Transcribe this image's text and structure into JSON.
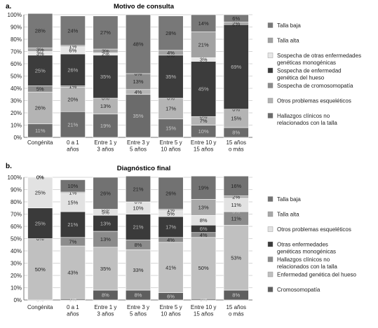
{
  "chart_data": [
    {
      "type": "bar",
      "stacked": true,
      "panel": "a.",
      "title": "Motivo de consulta",
      "xlabel": "",
      "ylabel": "",
      "ylim": [
        0,
        100
      ],
      "ytick_labels": [
        "0%",
        "10%",
        "20%",
        "30%",
        "40%",
        "50%",
        "60%",
        "70%",
        "80%",
        "90%",
        "100%"
      ],
      "categories": [
        [
          "Congénita"
        ],
        [
          "0 a 1",
          "años"
        ],
        [
          "Entre 1 y",
          "3 años"
        ],
        [
          "Entre 3 y",
          "5 años"
        ],
        [
          "Entre 5 y",
          "10 años"
        ],
        [
          "Entre 10 y",
          "15 años"
        ],
        [
          "15 años",
          "o más"
        ]
      ],
      "grid": true,
      "legend_position": "right",
      "series": [
        {
          "name": "Hallazgos clínicos no relacionados con la talla",
          "color": "#6b6b6b",
          "label_color": "#c9c9c9",
          "values": [
            11,
            21,
            19,
            35,
            15,
            10,
            8
          ],
          "labels": [
            "11%",
            "21%",
            "19%",
            "35%",
            "15%",
            "10%",
            "8%"
          ]
        },
        {
          "name": "Otros problemas esqueléticos",
          "color": "#b4b4b4",
          "label_color": "#222222",
          "values": [
            26,
            20,
            13,
            4,
            17,
            7,
            15
          ],
          "labels": [
            "26%",
            "20%",
            "13%",
            "4%",
            "17%",
            "7%",
            "15%"
          ]
        },
        {
          "name": "Sospecha de cromosomopatía",
          "color": "#8c8c8c",
          "label_color": "#222222",
          "values": [
            5,
            1,
            0,
            13,
            0,
            0,
            0
          ],
          "labels": [
            "5%",
            "1%",
            "0%",
            "13%",
            "0%",
            "0%",
            "0%"
          ]
        },
        {
          "name": "Sospecha de enfermedad genética del hueso",
          "color": "#3c3c3c",
          "label_color": "#bfbfbf",
          "values": [
            25,
            26,
            35,
            0,
            35,
            45,
            69
          ],
          "labels": [
            "25%",
            "26%",
            "35%",
            "0%",
            "35%",
            "45%",
            "69%"
          ]
        },
        {
          "name": "Sospecha de otras enfermedades genéticas monogénicas",
          "color": "#e6e6e6",
          "label_color": "#222222",
          "values": [
            3,
            6,
            2,
            0,
            0,
            3,
            0
          ],
          "labels": [
            "3%",
            "6%",
            "2%",
            "0%",
            "0%",
            "3%",
            "0%"
          ]
        },
        {
          "name": "Talla alta",
          "color": "#a2a2a2",
          "label_color": "#222222",
          "values": [
            3,
            1,
            3,
            0,
            4,
            21,
            2
          ],
          "labels": [
            "3%",
            "1%",
            "3%",
            "0%",
            "4%",
            "21%",
            "2%"
          ]
        },
        {
          "name": "Talla baja",
          "color": "#787878",
          "label_color": "#222222",
          "values": [
            28,
            24,
            27,
            48,
            28,
            14,
            6
          ],
          "labels": [
            "28%",
            "24%",
            "27%",
            "48%",
            "28%",
            "14%",
            "6%"
          ]
        }
      ]
    },
    {
      "type": "bar",
      "stacked": true,
      "panel": "b.",
      "title": "Diagnóstico final",
      "xlabel": "",
      "ylabel": "",
      "ylim": [
        0,
        100
      ],
      "ytick_labels": [
        "0%",
        "10%",
        "20%",
        "30%",
        "40%",
        "50%",
        "60%",
        "70%",
        "80%",
        "90%",
        "100%"
      ],
      "categories": [
        [
          "Congénita"
        ],
        [
          "0 a 1",
          "años"
        ],
        [
          "Entre 1 y",
          "3 años"
        ],
        [
          "Entre 3 y",
          "5 años"
        ],
        [
          "Entre 5 y",
          "10 años"
        ],
        [
          "Entre 10 y",
          "15 años"
        ],
        [
          "15 años",
          "o más"
        ]
      ],
      "grid": true,
      "legend_position": "right",
      "series": [
        {
          "name": "Cromosomopatía",
          "color": "#5e5e5e",
          "label_color": "#d0d0d0",
          "values": [
            0,
            1,
            8,
            8,
            6,
            1,
            8
          ],
          "labels": [
            "0%",
            "1%",
            "8%",
            "8%",
            "6%",
            "1%",
            "8%"
          ]
        },
        {
          "name": "Enfermedad genética del hueso",
          "color": "#c0c0c0",
          "label_color": "#222222",
          "values": [
            50,
            43,
            35,
            33,
            41,
            50,
            53
          ],
          "labels": [
            "50%",
            "43%",
            "35%",
            "33%",
            "41%",
            "50%",
            "53%"
          ]
        },
        {
          "name": "Hallazgos clínicos no relacionados con la talla",
          "color": "#8c8c8c",
          "label_color": "#222222",
          "values": [
            0,
            7,
            13,
            8,
            4,
            4,
            11
          ],
          "labels": [
            "0%",
            "7%",
            "13%",
            "8%",
            "4%",
            "4%",
            "11%"
          ]
        },
        {
          "name": "Otras enfermedades genéticas monogénicas",
          "color": "#3a3a3a",
          "label_color": "#bfbfbf",
          "values": [
            25,
            21,
            13,
            21,
            17,
            6,
            0
          ],
          "labels": [
            "25%",
            "21%",
            "13%",
            "21%",
            "17%",
            "6%",
            "0%"
          ]
        },
        {
          "name": "Otros problemas esqueléticos",
          "color": "#e2e2e2",
          "label_color": "#222222",
          "values": [
            25,
            15,
            5,
            10,
            5,
            8,
            11
          ],
          "labels": [
            "25%",
            "15%",
            "5%",
            "10%",
            "5%",
            "8%",
            "11%"
          ]
        },
        {
          "name": "Talla alta",
          "color": "#a8a8a8",
          "label_color": "#222222",
          "values": [
            0,
            1,
            0,
            0,
            1,
            13,
            2
          ],
          "labels": [
            "0%",
            "1%",
            "0%",
            "0%",
            "1%",
            "13%",
            "2%"
          ]
        },
        {
          "name": "Talla baja",
          "color": "#727272",
          "label_color": "#222222",
          "values": [
            0,
            10,
            26,
            21,
            26,
            19,
            16
          ],
          "labels": [
            "0%",
            "10%",
            "26%",
            "21%",
            "26%",
            "19%",
            "16%"
          ]
        }
      ]
    }
  ],
  "legends": [
    [
      {
        "label": [
          "Talla baja"
        ],
        "color": "#787878"
      },
      {
        "label": [
          "Talla alta"
        ],
        "color": "#a2a2a2"
      },
      {
        "label": [
          "Sospecha de otras enfermedades",
          "genéticas monogénicas"
        ],
        "color": "#e6e6e6"
      },
      {
        "label": [
          "Sospecha de enfermedad",
          "genética del hueso"
        ],
        "color": "#3c3c3c"
      },
      {
        "label": [
          "Sospecha de cromosomopatía"
        ],
        "color": "#8c8c8c"
      },
      {
        "label": [
          "Otros problemas esqueléticos"
        ],
        "color": "#b4b4b4"
      },
      {
        "label": [
          "Hallazgos clínicos no",
          "relacionados con la talla"
        ],
        "color": "#6b6b6b"
      }
    ],
    [
      {
        "label": [
          "Talla baja"
        ],
        "color": "#727272"
      },
      {
        "label": [
          "Talla alta"
        ],
        "color": "#a8a8a8"
      },
      {
        "label": [
          "Otros problemas esqueléticos"
        ],
        "color": "#e2e2e2"
      },
      {
        "label": [
          "Otras enfermedades",
          "genéticas monogénicas"
        ],
        "color": "#3a3a3a"
      },
      {
        "label": [
          "Hallazgos clínicos no",
          "relacionados con la talla"
        ],
        "color": "#8c8c8c"
      },
      {
        "label": [
          "Enfermedad genética del hueso"
        ],
        "color": "#c0c0c0"
      },
      {
        "label": [
          "Cromosomopatía"
        ],
        "color": "#5e5e5e"
      }
    ]
  ]
}
